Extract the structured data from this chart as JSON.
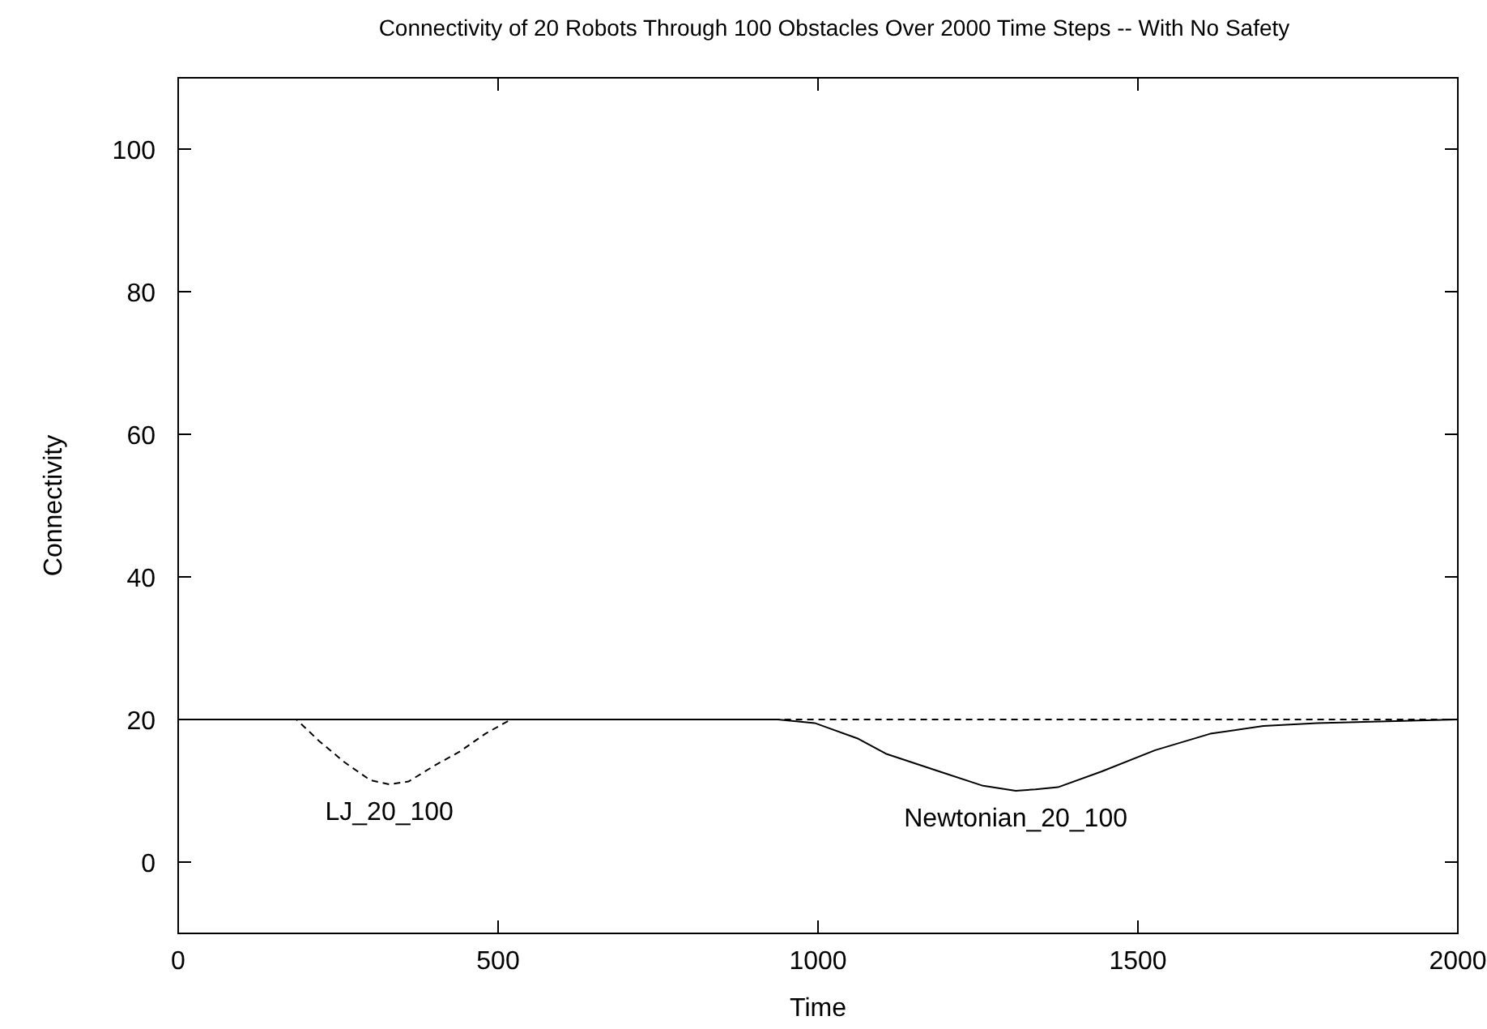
{
  "chart_data": {
    "type": "line",
    "title": "Connectivity of 20 Robots Through 100 Obstacles Over 2000 Time Steps -- With No Safety",
    "xlabel": "Time",
    "ylabel": "Connectivity",
    "xlim": [
      0,
      2000
    ],
    "ylim": [
      -10,
      110
    ],
    "xticks": [
      0,
      500,
      1000,
      1500,
      2000
    ],
    "yticks": [
      0,
      20,
      40,
      60,
      80,
      100
    ],
    "grid": false,
    "series": [
      {
        "name": "Newtonian_20_100",
        "color": "#000000",
        "line_style": "solid",
        "x": [
          0,
          900,
          937,
          995,
          1063,
          1106,
          1190,
          1258,
          1309,
          1340,
          1375,
          1443,
          1527,
          1613,
          1696,
          1780,
          2000
        ],
        "values": [
          20,
          20,
          20,
          19.5,
          17.3,
          15.2,
          12.7,
          10.7,
          10,
          10.2,
          10.5,
          12.7,
          15.7,
          18,
          19.1,
          19.5,
          20
        ]
      },
      {
        "name": "LJ_20_100",
        "color": "#000000",
        "line_style": "dashed",
        "x": [
          0,
          185,
          220,
          260,
          300,
          330,
          360,
          400,
          440,
          480,
          520,
          2000
        ],
        "values": [
          20,
          20,
          17,
          14,
          11.5,
          10.9,
          11.3,
          13.5,
          15.5,
          18,
          20,
          20
        ]
      }
    ]
  }
}
